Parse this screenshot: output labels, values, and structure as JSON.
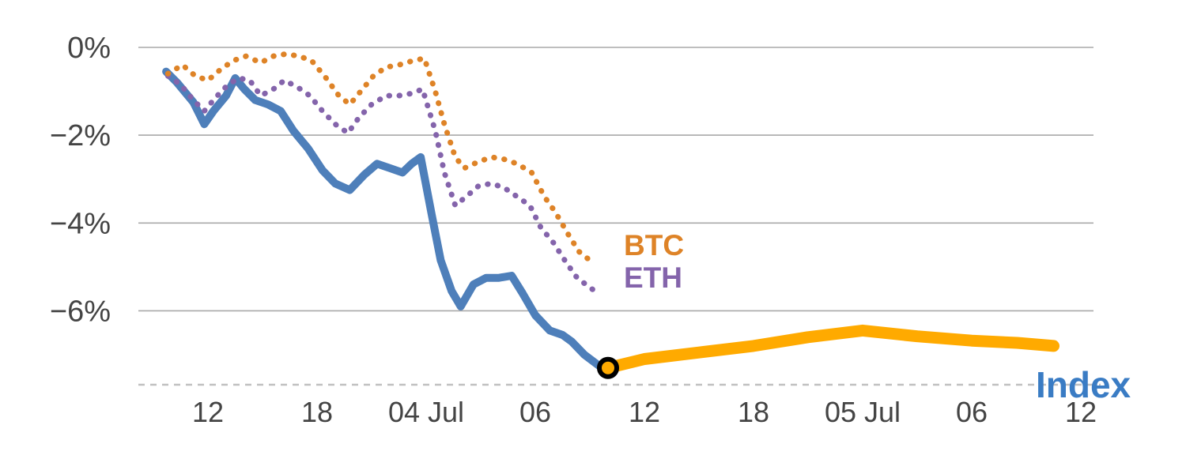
{
  "chart_data": {
    "type": "line",
    "grid": "horizontal",
    "x_axis": {
      "unit": "hours from 03 Jul 00:00",
      "range": [
        8.2,
        61
      ],
      "ticks": [
        {
          "t": 12,
          "label": "12"
        },
        {
          "t": 18,
          "label": "18"
        },
        {
          "t": 24,
          "label": "04 Jul"
        },
        {
          "t": 30,
          "label": "06"
        },
        {
          "t": 36,
          "label": "12"
        },
        {
          "t": 42,
          "label": "18"
        },
        {
          "t": 48,
          "label": "05 Jul"
        },
        {
          "t": 54,
          "label": "06"
        },
        {
          "t": 60,
          "label": "12"
        }
      ]
    },
    "y_axis": {
      "unit": "percent change",
      "range": [
        -7.8,
        0.3
      ],
      "ticks": [
        {
          "v": 0,
          "label": "0%"
        },
        {
          "v": -2,
          "label": "−2%"
        },
        {
          "v": -4,
          "label": "−4%"
        },
        {
          "v": -6,
          "label": "−6%"
        }
      ]
    },
    "series": [
      {
        "name": "BTC",
        "style": "dotted",
        "color": "#DE8327",
        "width": 7,
        "x": [
          9.8,
          10.6,
          11.3,
          12.0,
          12.7,
          13.4,
          14.1,
          14.9,
          15.6,
          16.3,
          17.0,
          17.7,
          18.5,
          19.2,
          19.8,
          20.5,
          21.1,
          21.8,
          22.5,
          23.3,
          23.9,
          24.5,
          25.0,
          25.6,
          26.1,
          26.9,
          27.6,
          28.3,
          29.0,
          29.8,
          30.5,
          31.1,
          31.8,
          32.4,
          33.0
        ],
        "y": [
          -0.6,
          -0.4,
          -0.65,
          -0.75,
          -0.5,
          -0.3,
          -0.2,
          -0.35,
          -0.2,
          -0.15,
          -0.2,
          -0.3,
          -0.7,
          -1.1,
          -1.3,
          -0.95,
          -0.65,
          -0.45,
          -0.4,
          -0.3,
          -0.25,
          -1.0,
          -1.75,
          -2.5,
          -2.75,
          -2.6,
          -2.5,
          -2.55,
          -2.65,
          -2.85,
          -3.4,
          -3.75,
          -4.25,
          -4.65,
          -4.85
        ]
      },
      {
        "name": "ETH",
        "style": "dotted",
        "color": "#8464AB",
        "width": 7,
        "x": [
          9.8,
          10.5,
          11.2,
          11.8,
          12.4,
          13.1,
          13.7,
          14.3,
          14.9,
          15.6,
          16.2,
          16.9,
          17.6,
          18.3,
          19.0,
          19.7,
          20.3,
          21.0,
          21.8,
          22.5,
          23.2,
          23.8,
          24.5,
          25.0,
          25.6,
          26.2,
          26.9,
          27.6,
          28.3,
          29.0,
          29.7,
          30.3,
          31.0,
          31.7,
          32.3,
          33.1,
          33.5
        ],
        "y": [
          -0.65,
          -0.85,
          -1.2,
          -1.45,
          -1.15,
          -0.85,
          -0.7,
          -0.75,
          -1.1,
          -0.95,
          -0.75,
          -0.9,
          -1.1,
          -1.45,
          -1.75,
          -1.95,
          -1.6,
          -1.3,
          -1.1,
          -1.1,
          -1.05,
          -0.95,
          -1.9,
          -2.85,
          -3.6,
          -3.4,
          -3.15,
          -3.1,
          -3.2,
          -3.4,
          -3.6,
          -4.1,
          -4.45,
          -4.9,
          -5.25,
          -5.5,
          -5.6
        ]
      },
      {
        "name": "Index",
        "style": "solid",
        "color": "#4E7FBA",
        "width": 10,
        "x": [
          9.7,
          10.3,
          11.2,
          11.8,
          12.3,
          13.0,
          13.5,
          14.0,
          14.6,
          15.3,
          16.0,
          16.7,
          17.5,
          18.3,
          19.0,
          19.8,
          20.6,
          21.3,
          22.0,
          22.7,
          23.2,
          23.7,
          24.3,
          24.8,
          25.4,
          25.9,
          26.6,
          27.3,
          28.0,
          28.7,
          29.3,
          30.0,
          30.8,
          31.5,
          32.0,
          32.7,
          33.5,
          34.0
        ],
        "y": [
          -0.55,
          -0.8,
          -1.25,
          -1.75,
          -1.45,
          -1.1,
          -0.7,
          -0.95,
          -1.2,
          -1.3,
          -1.45,
          -1.9,
          -2.3,
          -2.8,
          -3.1,
          -3.25,
          -2.9,
          -2.65,
          -2.75,
          -2.85,
          -2.65,
          -2.5,
          -3.8,
          -4.85,
          -5.55,
          -5.9,
          -5.4,
          -5.25,
          -5.25,
          -5.2,
          -5.6,
          -6.1,
          -6.45,
          -6.55,
          -6.7,
          -7.0,
          -7.25,
          -7.3
        ]
      },
      {
        "name": "Index orange segment",
        "style": "solid",
        "color": "#FFAA00",
        "width": 15,
        "x": [
          34.0,
          36.0,
          39.0,
          42.0,
          45.0,
          48.0,
          51.0,
          54.0,
          56.5,
          58.5
        ],
        "y": [
          -7.3,
          -7.1,
          -6.95,
          -6.8,
          -6.6,
          -6.45,
          -6.58,
          -6.68,
          -6.73,
          -6.8
        ]
      }
    ],
    "marker": {
      "t": 34,
      "v": -7.3,
      "shape": "open-circle",
      "stroke": "#000000",
      "fill": "#FFAA00"
    },
    "annotations": {
      "btc": {
        "text": "BTC",
        "color": "#DE8327"
      },
      "eth": {
        "text": "ETH",
        "color": "#8464AB"
      },
      "index": {
        "text": "Index",
        "color": "#3A7CC4"
      }
    },
    "colors": {
      "grid": "#A8A8A8",
      "axis_text": "#444444",
      "baseline": "#C0C0C0"
    }
  }
}
